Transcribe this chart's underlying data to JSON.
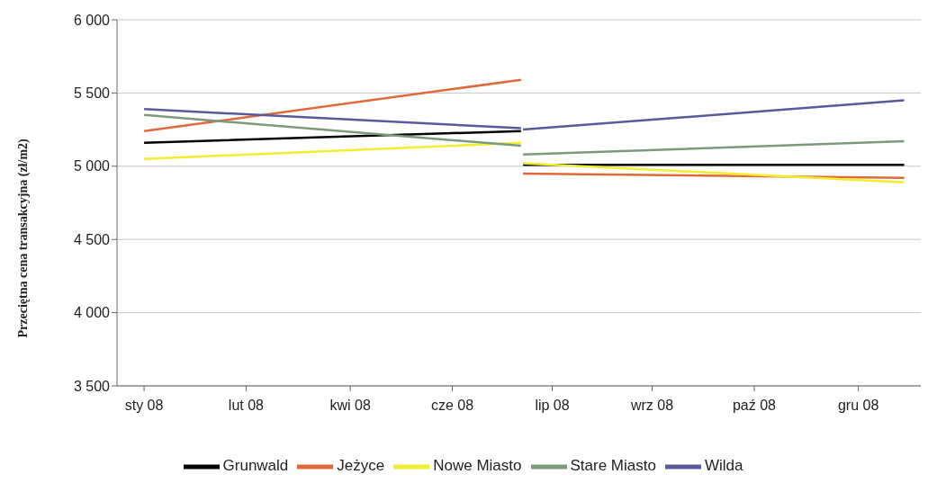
{
  "chart_data": {
    "type": "line",
    "ylabel": "Przeciętna cena transakcyjna (zł/m2)",
    "x": [
      "2008-01-01",
      "2008-06-30",
      "2008-06-30T12:00",
      "2008-07-01",
      "2008-12-31"
    ],
    "series": [
      {
        "name": "Grunwald",
        "color": "#000000",
        "values": [
          5160,
          5240,
          null,
          5010,
          5010
        ]
      },
      {
        "name": "Jeżyce",
        "color": "#e0683a",
        "values": [
          5240,
          5590,
          null,
          4950,
          4920
        ]
      },
      {
        "name": "Nowe Miasto",
        "color": "#f2ee2e",
        "values": [
          5050,
          5160,
          null,
          5020,
          4890
        ]
      },
      {
        "name": "Stare Miasto",
        "color": "#7a9a7a",
        "values": [
          5350,
          5140,
          null,
          5080,
          5170
        ]
      },
      {
        "name": "Wilda",
        "color": "#5a5a9a",
        "values": [
          5390,
          5260,
          null,
          5250,
          5450
        ]
      }
    ],
    "xlim": [
      "2007-12-19",
      "2009-01-08"
    ],
    "xticks": [
      {
        "value": "2008-01-01",
        "label": "sty 08"
      },
      {
        "value": "2008-02-19",
        "label": "lut 08"
      },
      {
        "value": "2008-04-09",
        "label": "kwi 08"
      },
      {
        "value": "2008-05-28",
        "label": "cze 08"
      },
      {
        "value": "2008-07-15",
        "label": "lip 08"
      },
      {
        "value": "2008-09-01",
        "label": "wrz 08"
      },
      {
        "value": "2008-10-20",
        "label": "paź 08"
      },
      {
        "value": "2008-12-09",
        "label": "gru 08"
      }
    ],
    "ylim": [
      3500,
      6000
    ],
    "yticks": [
      {
        "value": 3500,
        "label": "3 500"
      },
      {
        "value": 4000,
        "label": "4 000"
      },
      {
        "value": 4500,
        "label": "4 500"
      },
      {
        "value": 5000,
        "label": "5 000"
      },
      {
        "value": 5500,
        "label": "5 500"
      },
      {
        "value": 6000,
        "label": "6 000"
      }
    ],
    "grid": "y",
    "legend": "bottom",
    "marker": "none",
    "line_style": "solid"
  }
}
